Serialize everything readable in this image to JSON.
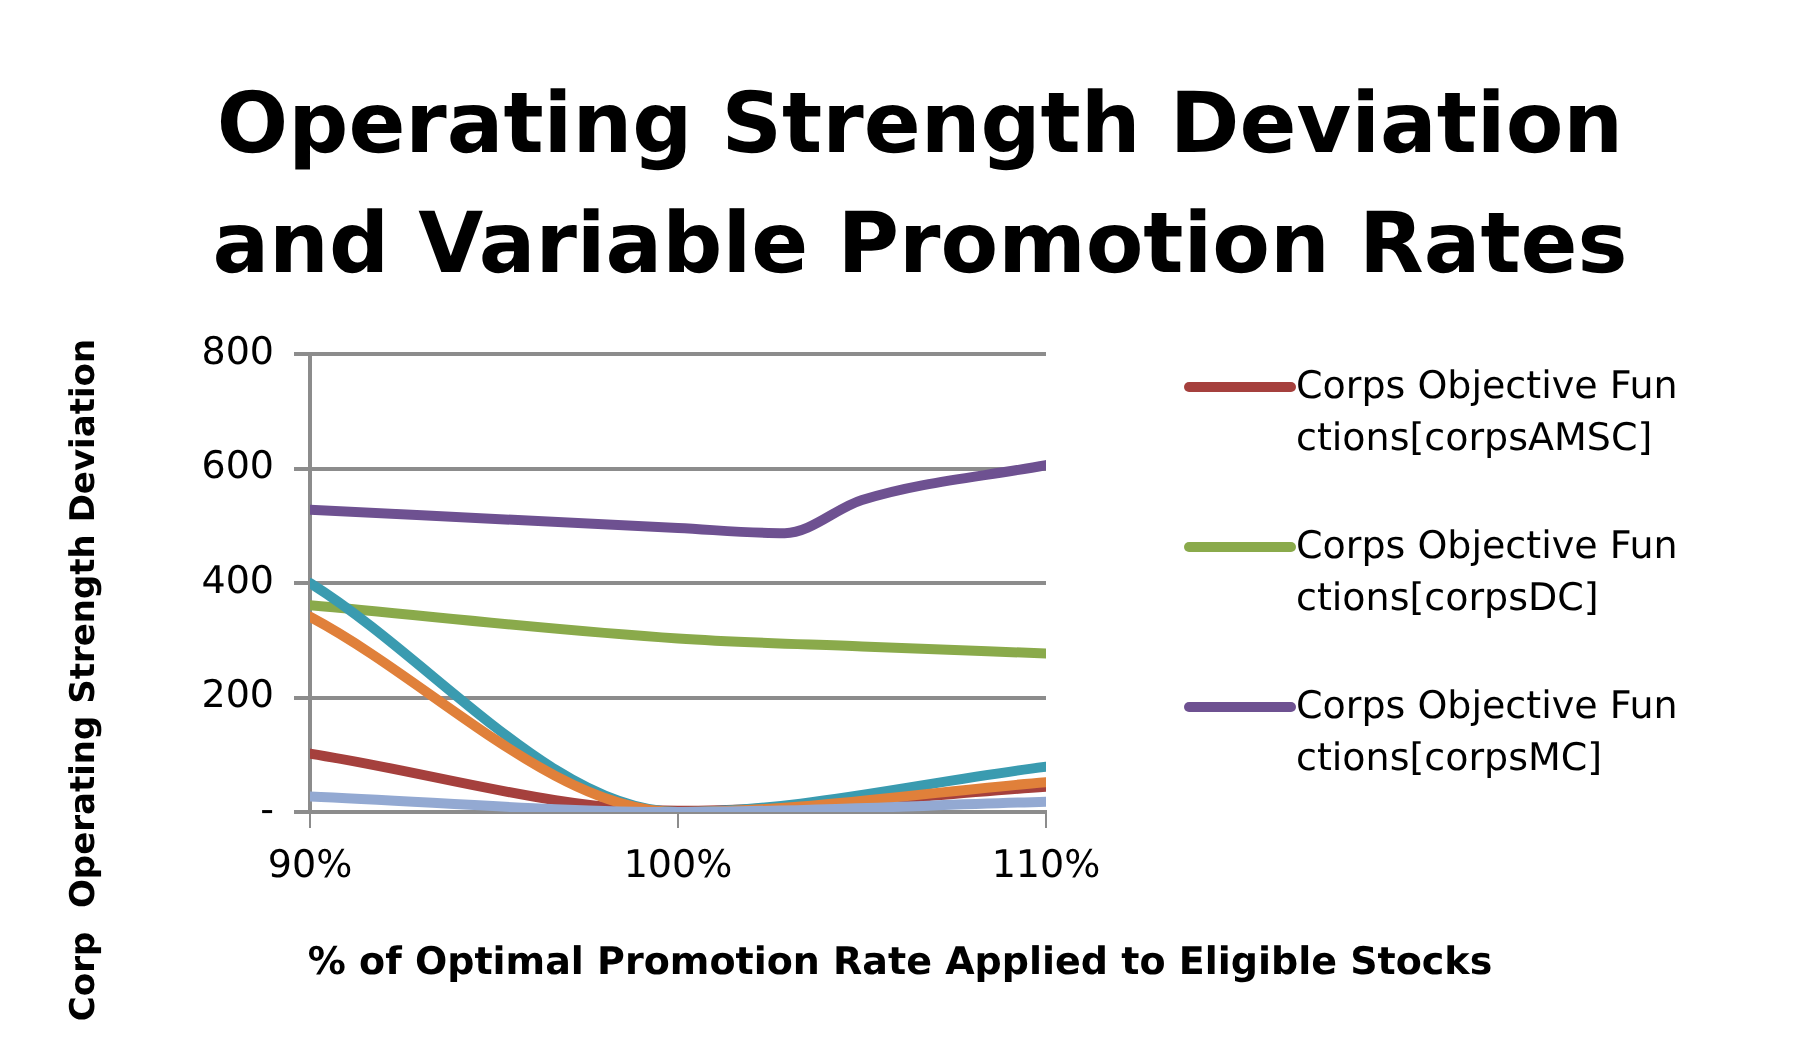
{
  "chart_data": {
    "type": "line",
    "title": "Operating Strength Deviation and Variable Promotion Rates",
    "xlabel": "% of Optimal Promotion Rate Applied to Eligible Stocks",
    "ylabel": "Corp  Operating Strength Deviation",
    "xlim": [
      90,
      110
    ],
    "xticks": [
      {
        "value": 90,
        "label": "90%"
      },
      {
        "value": 100,
        "label": "100%"
      },
      {
        "value": 110,
        "label": "110%"
      }
    ],
    "ylim": [
      0,
      800
    ],
    "yticks": [
      {
        "value": 0,
        "label": "-"
      },
      200,
      400,
      600,
      800
    ],
    "grid": "y",
    "legend": "right",
    "marker": "none",
    "line_style": "solid",
    "series": [
      {
        "name": "Corps Objective Functions[corpsAMSC]",
        "color": "#a5403d",
        "x": [
          90,
          100,
          110
        ],
        "values": [
          102,
          2,
          44
        ]
      },
      {
        "name": "Corps Objective Functions[corpsDC]",
        "color": "#8aaa4b",
        "x": [
          90,
          100,
          105,
          110
        ],
        "values": [
          361,
          303,
          289,
          277
        ]
      },
      {
        "name": "Corps Objective Functions[corpsMC]",
        "color": "#6e5191",
        "x": [
          90,
          100,
          102.9,
          105,
          110
        ],
        "values": [
          528,
          496,
          487,
          545,
          606
        ]
      },
      {
        "color": "#3a9bb0",
        "x": [
          90,
          100,
          110
        ],
        "values": [
          400,
          0,
          79
        ]
      },
      {
        "color": "#e0803a",
        "x": [
          90,
          100,
          110
        ],
        "values": [
          341,
          0,
          52
        ]
      },
      {
        "color": "#93a9d2",
        "x": [
          90,
          100,
          110
        ],
        "values": [
          27,
          0,
          18
        ]
      }
    ]
  }
}
